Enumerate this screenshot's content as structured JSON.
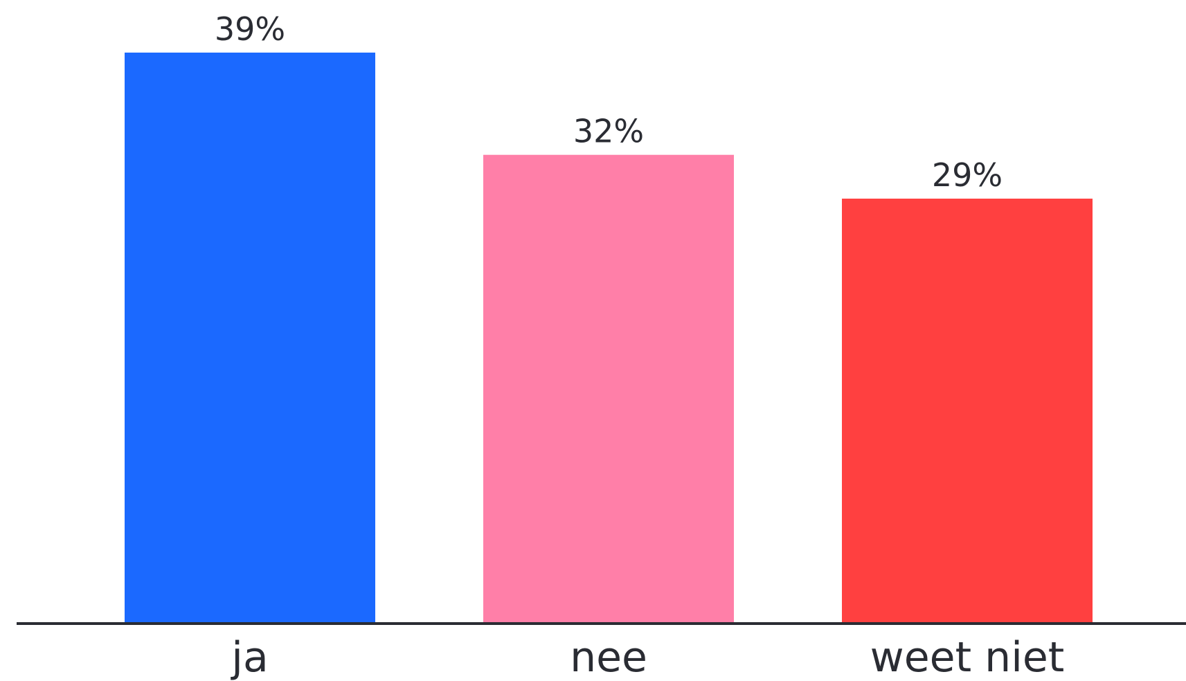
{
  "chart_data": {
    "type": "bar",
    "categories": [
      "ja",
      "nee",
      "weet niet"
    ],
    "values": [
      39,
      32,
      29
    ],
    "value_labels": [
      "39%",
      "32%",
      "29%"
    ],
    "colors": [
      "#1b69ff",
      "#ff7fa8",
      "#ff4040"
    ],
    "axis_color": "#2a2c33",
    "title": "",
    "xlabel": "",
    "ylabel": "",
    "ylim": [
      0,
      39
    ],
    "grid": false,
    "legend": "none"
  }
}
